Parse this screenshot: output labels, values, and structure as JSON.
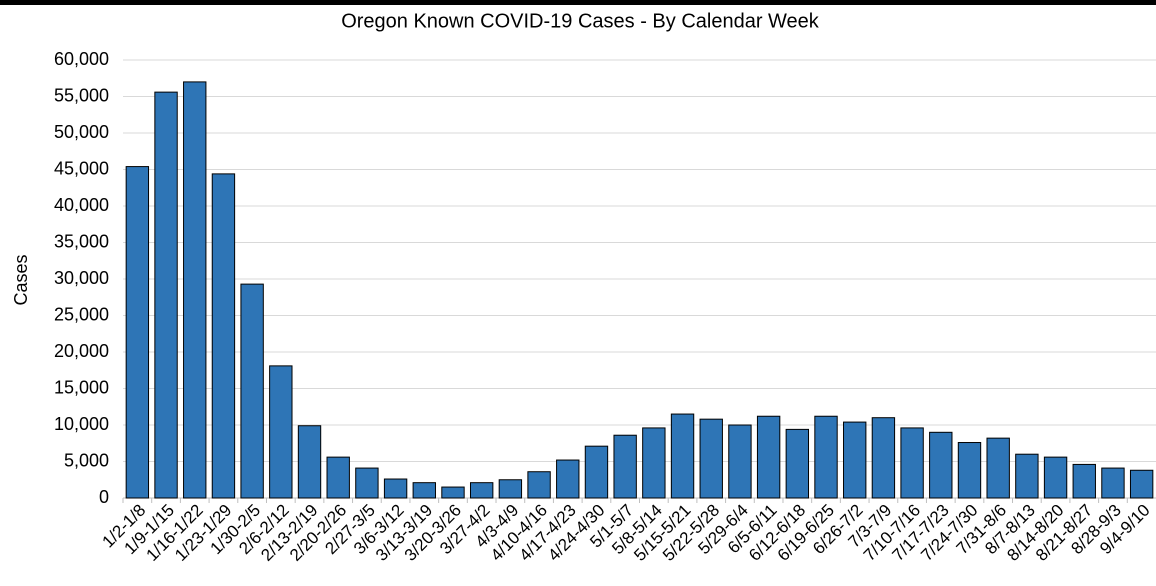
{
  "chart_data": {
    "type": "bar",
    "title": "Oregon Known COVID-19 Cases - By Calendar Week",
    "ylabel": "Cases",
    "categories": [
      "1/2-1/8",
      "1/9-1/15",
      "1/16-1/22",
      "1/23-1/29",
      "1/30-2/5",
      "2/6-2/12",
      "2/13-2/19",
      "2/20-2/26",
      "2/27-3/5",
      "3/6-3/12",
      "3/13-3/19",
      "3/20-3/26",
      "3/27-4/2",
      "4/3-4/9",
      "4/10-4/16",
      "4/17-4/23",
      "4/24-4/30",
      "5/1-5/7",
      "5/8-5/14",
      "5/15-5/21",
      "5/22-5/28",
      "5/29-6/4",
      "6/5-6/11",
      "6/12-6/18",
      "6/19-6/25",
      "6/26-7/2",
      "7/3-7/9",
      "7/10-7/16",
      "7/17-7/23",
      "7/24-7/30",
      "7/31-8/6",
      "8/7-8/13",
      "8/14-8/20",
      "8/21-8/27",
      "8/28-9/3",
      "9/4-9/10"
    ],
    "values": [
      45400,
      55600,
      57000,
      44400,
      29300,
      18100,
      9900,
      5600,
      4100,
      2600,
      2100,
      1500,
      2100,
      2500,
      3600,
      5200,
      7100,
      8600,
      9600,
      11500,
      10800,
      10000,
      11200,
      9400,
      11200,
      10400,
      11000,
      9600,
      9000,
      7600,
      8200,
      6000,
      5600,
      4600,
      4100,
      3800
    ],
    "color": "#2e75b6",
    "ylim": [
      0,
      60000
    ],
    "yticks": [
      0,
      {
        "value": 5000,
        "label": "5,000"
      },
      {
        "value": 10000,
        "label": "10,000"
      },
      {
        "value": 15000,
        "label": "15,000"
      },
      {
        "value": 20000,
        "label": "20,000"
      },
      {
        "value": 25000,
        "label": "25,000"
      },
      {
        "value": 30000,
        "label": "30,000"
      },
      {
        "value": 35000,
        "label": "35,000"
      },
      {
        "value": 40000,
        "label": "40,000"
      },
      {
        "value": 45000,
        "label": "45,000"
      },
      {
        "value": 50000,
        "label": "50,000"
      },
      {
        "value": 55000,
        "label": "55,000"
      },
      {
        "value": 60000,
        "label": "60,000"
      }
    ],
    "grid": true
  }
}
